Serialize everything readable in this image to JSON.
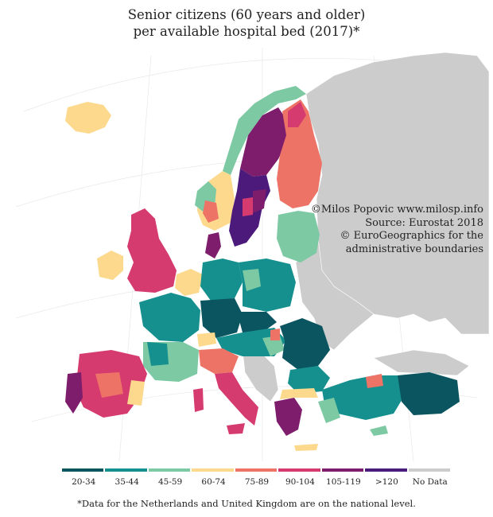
{
  "title": {
    "line1": "Senior citizens (60 years and older)",
    "line2": "per available hospital bed (2017)*"
  },
  "credits": {
    "line1": "©Milos Popovic www.milosp.info",
    "line2": "Source: Eurostat 2018",
    "line3": "© EuroGeographics for the",
    "line4": "administrative boundaries"
  },
  "legend": {
    "items": [
      {
        "label": "20-34",
        "color": "#0b5560"
      },
      {
        "label": "35-44",
        "color": "#15908e"
      },
      {
        "label": "45-59",
        "color": "#7cc9a3"
      },
      {
        "label": "60-74",
        "color": "#fcd98c"
      },
      {
        "label": "75-89",
        "color": "#ee7367"
      },
      {
        "label": "90-104",
        "color": "#d63b6f"
      },
      {
        "label": "105-119",
        "color": "#7d1d6c"
      },
      {
        "label": ">120",
        "color": "#4b1a7a"
      },
      {
        "label": "No Data",
        "color": "#cccccc"
      }
    ]
  },
  "map": {
    "no_data_color": "#cccccc",
    "regions": [
      {
        "name": "iceland",
        "class": "60-74"
      },
      {
        "name": "norway-north",
        "class": "45-59"
      },
      {
        "name": "norway-south",
        "class": "60-74"
      },
      {
        "name": "sweden-north",
        "class": "105-119"
      },
      {
        "name": "sweden-south",
        "class": ">120"
      },
      {
        "name": "finland",
        "class": "75-89"
      },
      {
        "name": "baltics",
        "class": "45-59"
      },
      {
        "name": "denmark",
        "class": "105-119"
      },
      {
        "name": "ireland",
        "class": "60-74"
      },
      {
        "name": "united-kingdom",
        "class": "90-104"
      },
      {
        "name": "benelux",
        "class": "60-74"
      },
      {
        "name": "germany-north",
        "class": "35-44"
      },
      {
        "name": "germany-south",
        "class": "20-34"
      },
      {
        "name": "poland",
        "class": "35-44"
      },
      {
        "name": "france-north",
        "class": "35-44"
      },
      {
        "name": "france-south",
        "class": "45-59"
      },
      {
        "name": "iberia",
        "class": "90-104"
      },
      {
        "name": "portugal",
        "class": "105-119"
      },
      {
        "name": "italy-north",
        "class": "75-89"
      },
      {
        "name": "italy-south",
        "class": "90-104"
      },
      {
        "name": "austria-hungary",
        "class": "35-44"
      },
      {
        "name": "romania-bulgaria",
        "class": "20-34"
      },
      {
        "name": "greece",
        "class": "105-119"
      },
      {
        "name": "turkey-west",
        "class": "35-44"
      },
      {
        "name": "turkey-east",
        "class": "20-34"
      }
    ]
  },
  "footnote": "*Data for the Netherlands and United Kingdom are on the national level."
}
